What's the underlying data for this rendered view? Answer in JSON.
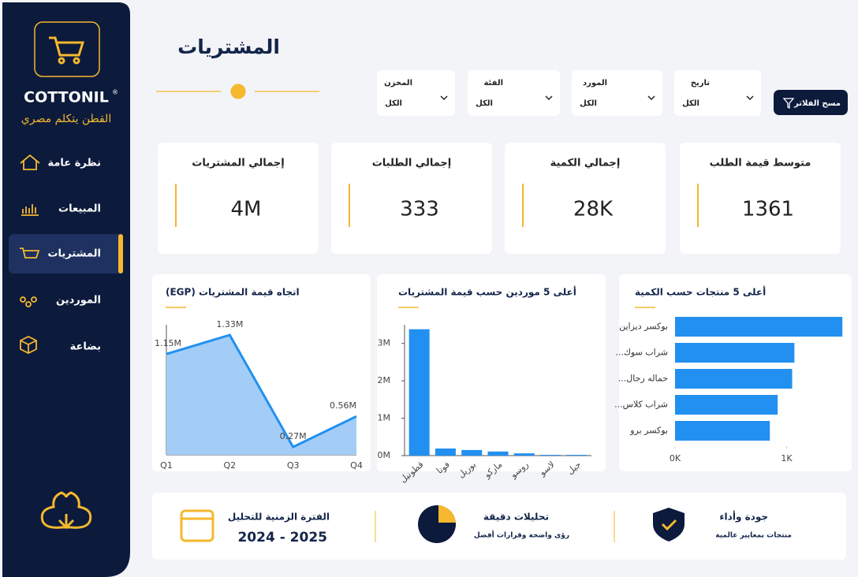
{
  "sidebar": {
    "brand": "COTTONIL",
    "brand_mark": "®",
    "tagline": "القطن يتكلم مصري",
    "nav": [
      "نظرة عامة",
      "المبيعات",
      "المشتريات",
      "الموردين",
      "بضاعة"
    ]
  },
  "header": {
    "title": "المشتريات"
  },
  "filters": [
    {
      "label": "المخزن",
      "value": "الكل"
    },
    {
      "label": "الفئة",
      "value": "الكل"
    },
    {
      "label": "المورد",
      "value": "الكل"
    },
    {
      "label": "تاريخ",
      "value": "الكل"
    }
  ],
  "clear_filters": "مسح الفلاتر",
  "kpis": [
    {
      "title": "إجمالي المشتريات",
      "value": "4M"
    },
    {
      "title": "إجمالي الطلبات",
      "value": "333"
    },
    {
      "title": "إجمالي الكمية",
      "value": "28K"
    },
    {
      "title": "متوسط قيمة الطلب",
      "value": "1361"
    }
  ],
  "chart_data": [
    {
      "type": "area",
      "title": "اتجاه قيمة المشتريات (EGP)",
      "categories": [
        "Q1",
        "Q2",
        "Q3",
        "Q4"
      ],
      "values": [
        1150000,
        1330000,
        270000,
        560000
      ],
      "value_labels": [
        "1.15M",
        "1.33M",
        "0.27M",
        "0.56M"
      ],
      "color": "#2190f0"
    },
    {
      "type": "bar",
      "title": "أعلى 5 موردين حسب قيمة المشتريات",
      "categories": [
        "قطونيل",
        "فونا",
        "بوريل",
        "ماركو",
        "روسو",
        "لاسو",
        "جيل"
      ],
      "values": [
        3380000,
        190000,
        150000,
        110000,
        60000,
        20000,
        20000
      ],
      "ylim": [
        0,
        3500000
      ],
      "yticks": [
        {
          "value": 0,
          "label": "0M"
        },
        {
          "value": 1000000,
          "label": "1M"
        },
        {
          "value": 2000000,
          "label": "2M"
        },
        {
          "value": 3000000,
          "label": "3M"
        }
      ],
      "color": "#2190f0"
    },
    {
      "type": "hbar",
      "title": "أعلى 5 منتجات حسب الكمية",
      "categories": [
        "بوكسر ديزاين",
        "شراب سوك...",
        "حماله رجال...",
        "شراب كلاس...",
        "بوكسر برو"
      ],
      "values": [
        1500,
        1070,
        1050,
        920,
        850
      ],
      "xlim": [
        0,
        1520
      ],
      "xticks": [
        {
          "value": 0,
          "label": "0K"
        },
        {
          "value": 1000,
          "label": "1K"
        }
      ],
      "color": "#2190f0"
    }
  ],
  "footer": [
    {
      "title": "الفترة الزمنية للتحليل",
      "text": "2024 - 2025"
    },
    {
      "title": "تحليلات دقيقة",
      "text": "رؤى واضحة وقرارات أفضل"
    },
    {
      "title": "جودة وأداء",
      "text": "منتجات بمعايير عالمية"
    }
  ]
}
